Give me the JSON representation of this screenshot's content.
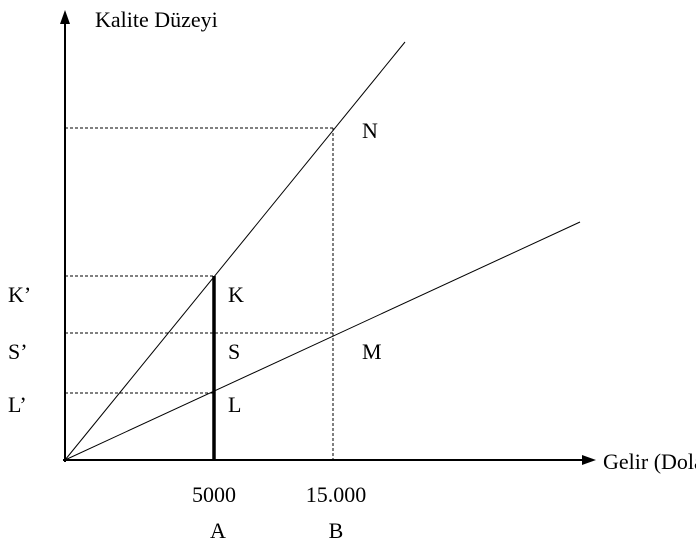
{
  "y_axis": {
    "label": "Kalite Düzeyi",
    "ticks": [
      "K’",
      "S’",
      "L’"
    ]
  },
  "x_axis": {
    "label": "Gelir  (Dolar)",
    "ticks": [
      {
        "value": "5000",
        "point": "A"
      },
      {
        "value": "15.000",
        "point": "B"
      }
    ]
  },
  "points": [
    "N",
    "K",
    "S",
    "M",
    "L"
  ]
}
